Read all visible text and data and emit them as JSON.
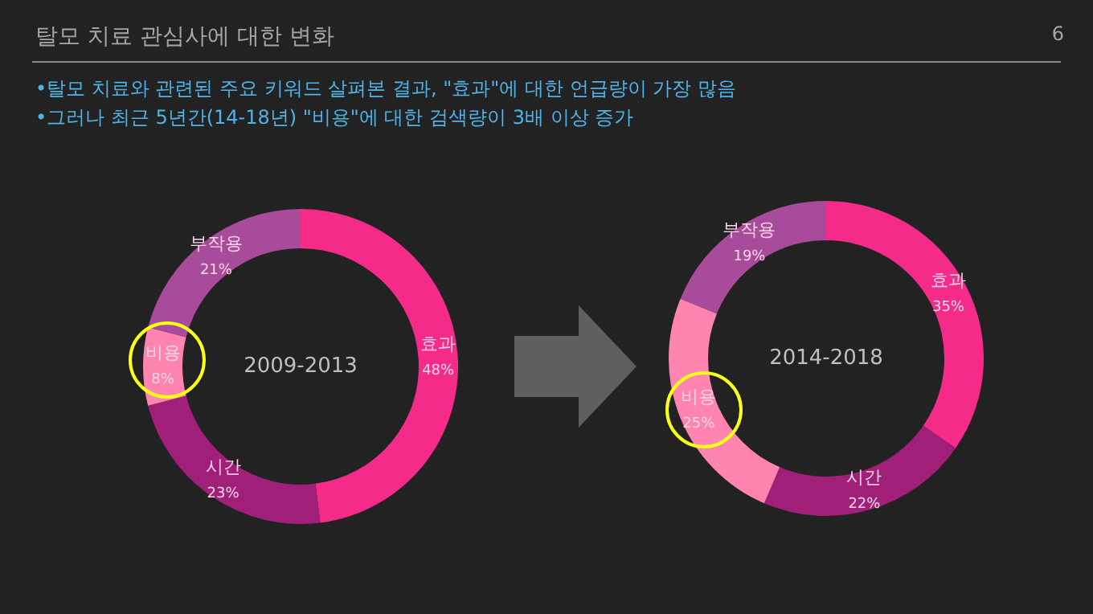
{
  "chart_data": [
    {
      "type": "donut",
      "title": "2009-2013",
      "categories": [
        "효과",
        "시간",
        "비용",
        "부작용"
      ],
      "values": [
        48,
        23,
        8,
        21
      ],
      "value_labels": [
        "48%",
        "23%",
        "8%",
        "21%"
      ],
      "colors": [
        "#f52b8a",
        "#a01f78",
        "#ff85b0",
        "#a84b9a"
      ],
      "legend": false,
      "annotations": [
        "탈모 치료 관심사에 대한 변화",
        "6",
        "•탈모 치료와 관련된 주요 키워드 살펴본 결과, \"효과\"에 대한 언급량이 가장 많음",
        "•그러나 최근 5년간(14-18년) \"비용\"에 대한 검색량이 3배 이상 증가"
      ]
    },
    {
      "type": "donut",
      "title": "2014-2018",
      "categories": [
        "효과",
        "시간",
        "비용",
        "부작용"
      ],
      "values": [
        35,
        22,
        25,
        19
      ],
      "value_labels": [
        "35%",
        "22%",
        "25%",
        "19%"
      ],
      "colors": [
        "#f52b8a",
        "#a01f78",
        "#ff85b0",
        "#a84b9a"
      ],
      "legend": false
    }
  ]
}
